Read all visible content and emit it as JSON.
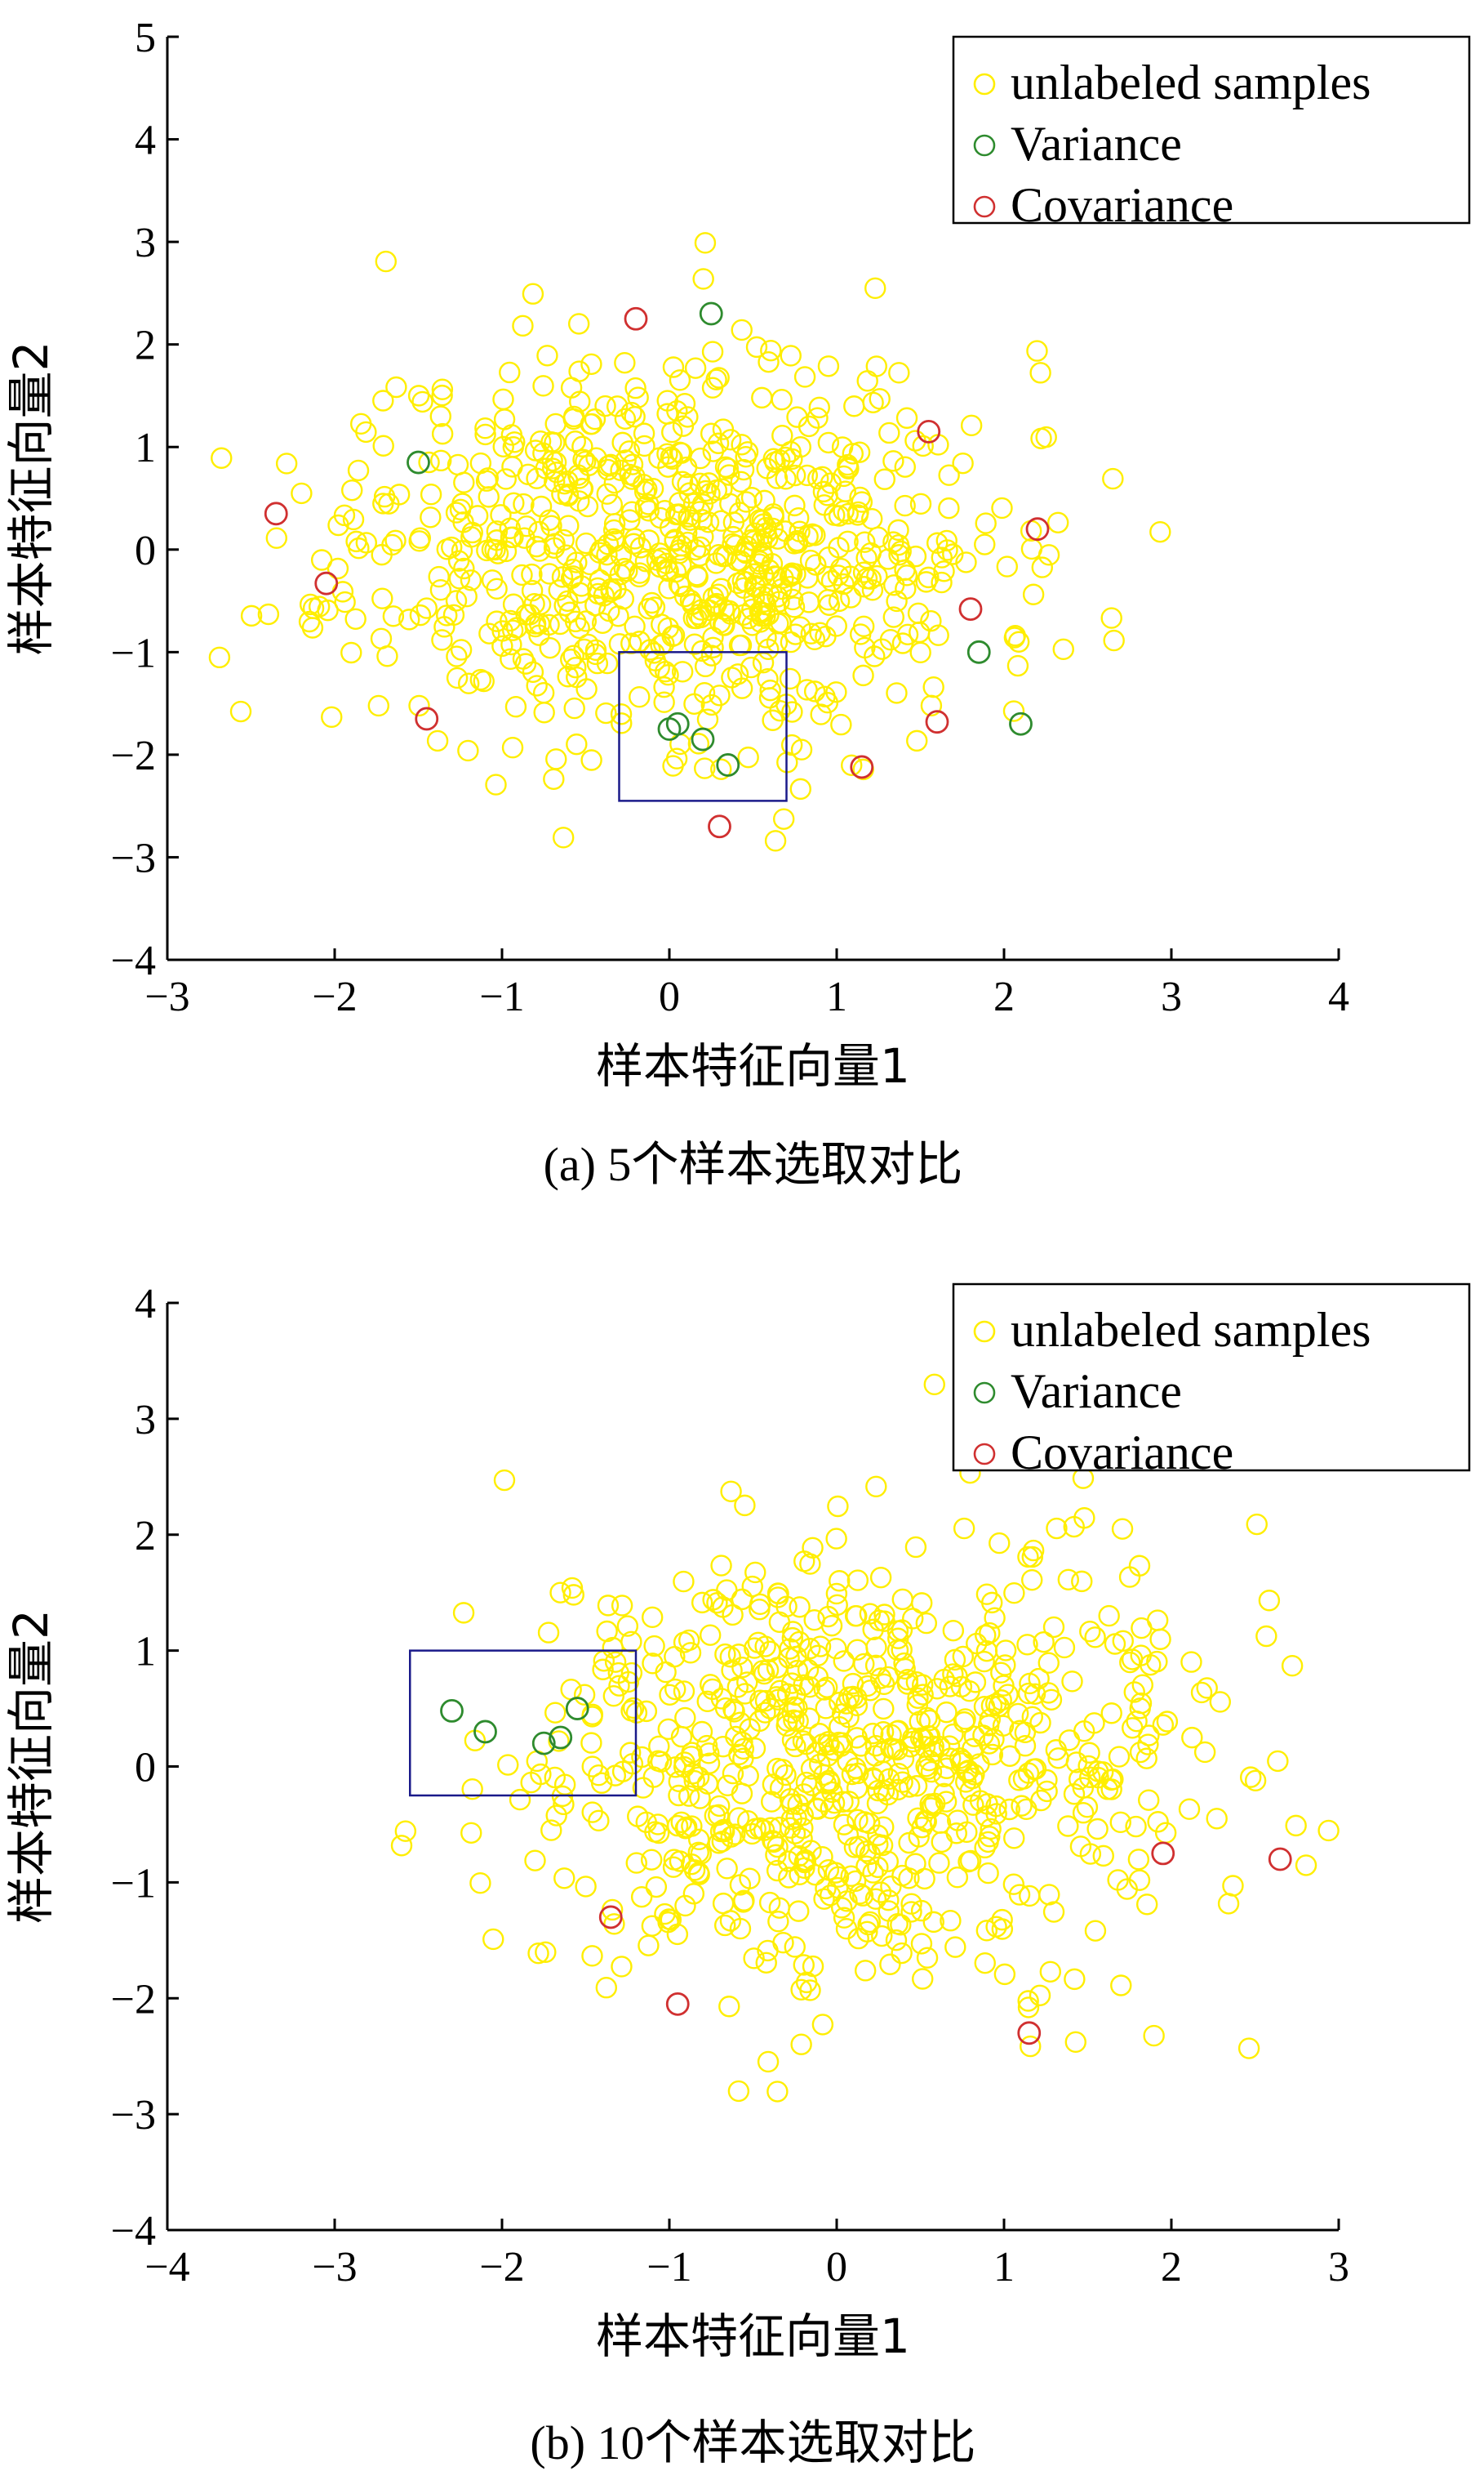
{
  "chart_data": [
    {
      "type": "scatter",
      "caption": "(a) 5个样本选取对比",
      "xlabel": "样本特征向量1",
      "ylabel": "样本特征向量2",
      "xlim": [
        -3,
        4
      ],
      "ylim": [
        -4,
        5
      ],
      "xticks": [
        "−3",
        "−2",
        "−1",
        "0",
        "1",
        "2",
        "3",
        "4"
      ],
      "yticks": [
        "−4",
        "−3",
        "−2",
        "−1",
        "0",
        "1",
        "2",
        "3",
        "4",
        "5"
      ],
      "grid": false,
      "legend_position": "top-right",
      "legend": [
        "unlabeled samples",
        "Variance",
        "Covariance"
      ],
      "highlight_box": {
        "x": [
          -0.3,
          0.7
        ],
        "y": [
          -2.45,
          -1.0
        ]
      },
      "series": [
        {
          "name": "Variance",
          "color": "#2e8b2e",
          "points": [
            [
              0.25,
              2.3
            ],
            [
              -1.5,
              0.85
            ],
            [
              1.85,
              -1.0
            ],
            [
              2.1,
              -1.7
            ],
            [
              0.0,
              -1.75
            ],
            [
              0.05,
              -1.7
            ],
            [
              0.2,
              -1.85
            ],
            [
              0.35,
              -2.1
            ]
          ]
        },
        {
          "name": "Covariance",
          "color": "#d03030",
          "points": [
            [
              -0.2,
              2.25
            ],
            [
              -2.35,
              0.35
            ],
            [
              1.55,
              1.15
            ],
            [
              2.2,
              0.2
            ],
            [
              -2.05,
              -0.33
            ],
            [
              1.8,
              -0.58
            ],
            [
              -1.45,
              -1.65
            ],
            [
              1.6,
              -1.68
            ],
            [
              1.15,
              -2.12
            ],
            [
              0.3,
              -2.7
            ]
          ]
        }
      ]
    },
    {
      "type": "scatter",
      "caption": "(b) 10个样本选取对比",
      "xlabel": "样本特征向量1",
      "ylabel": "样本特征向量2",
      "xlim": [
        -4,
        3
      ],
      "ylim": [
        -4,
        4
      ],
      "xticks": [
        "−4",
        "−3",
        "−2",
        "−1",
        "0",
        "1",
        "2",
        "3"
      ],
      "yticks": [
        "−4",
        "−3",
        "−2",
        "−1",
        "0",
        "1",
        "2",
        "3",
        "4"
      ],
      "grid": false,
      "legend_position": "top-right",
      "legend": [
        "unlabeled samples",
        "Variance",
        "Covariance"
      ],
      "highlight_box": {
        "x": [
          -2.55,
          -1.2
        ],
        "y": [
          -0.25,
          1.0
        ]
      },
      "series": [
        {
          "name": "Variance",
          "color": "#2e8b2e",
          "points": [
            [
              -2.3,
              0.48
            ],
            [
              -2.1,
              0.3
            ],
            [
              -1.75,
              0.2
            ],
            [
              -1.65,
              0.25
            ],
            [
              -1.55,
              0.5
            ]
          ]
        },
        {
          "name": "Covariance",
          "color": "#d03030",
          "points": [
            [
              -1.35,
              -1.3
            ],
            [
              -0.95,
              -2.05
            ],
            [
              1.15,
              -2.3
            ],
            [
              1.95,
              -0.75
            ],
            [
              2.65,
              -0.8
            ]
          ]
        }
      ]
    }
  ]
}
